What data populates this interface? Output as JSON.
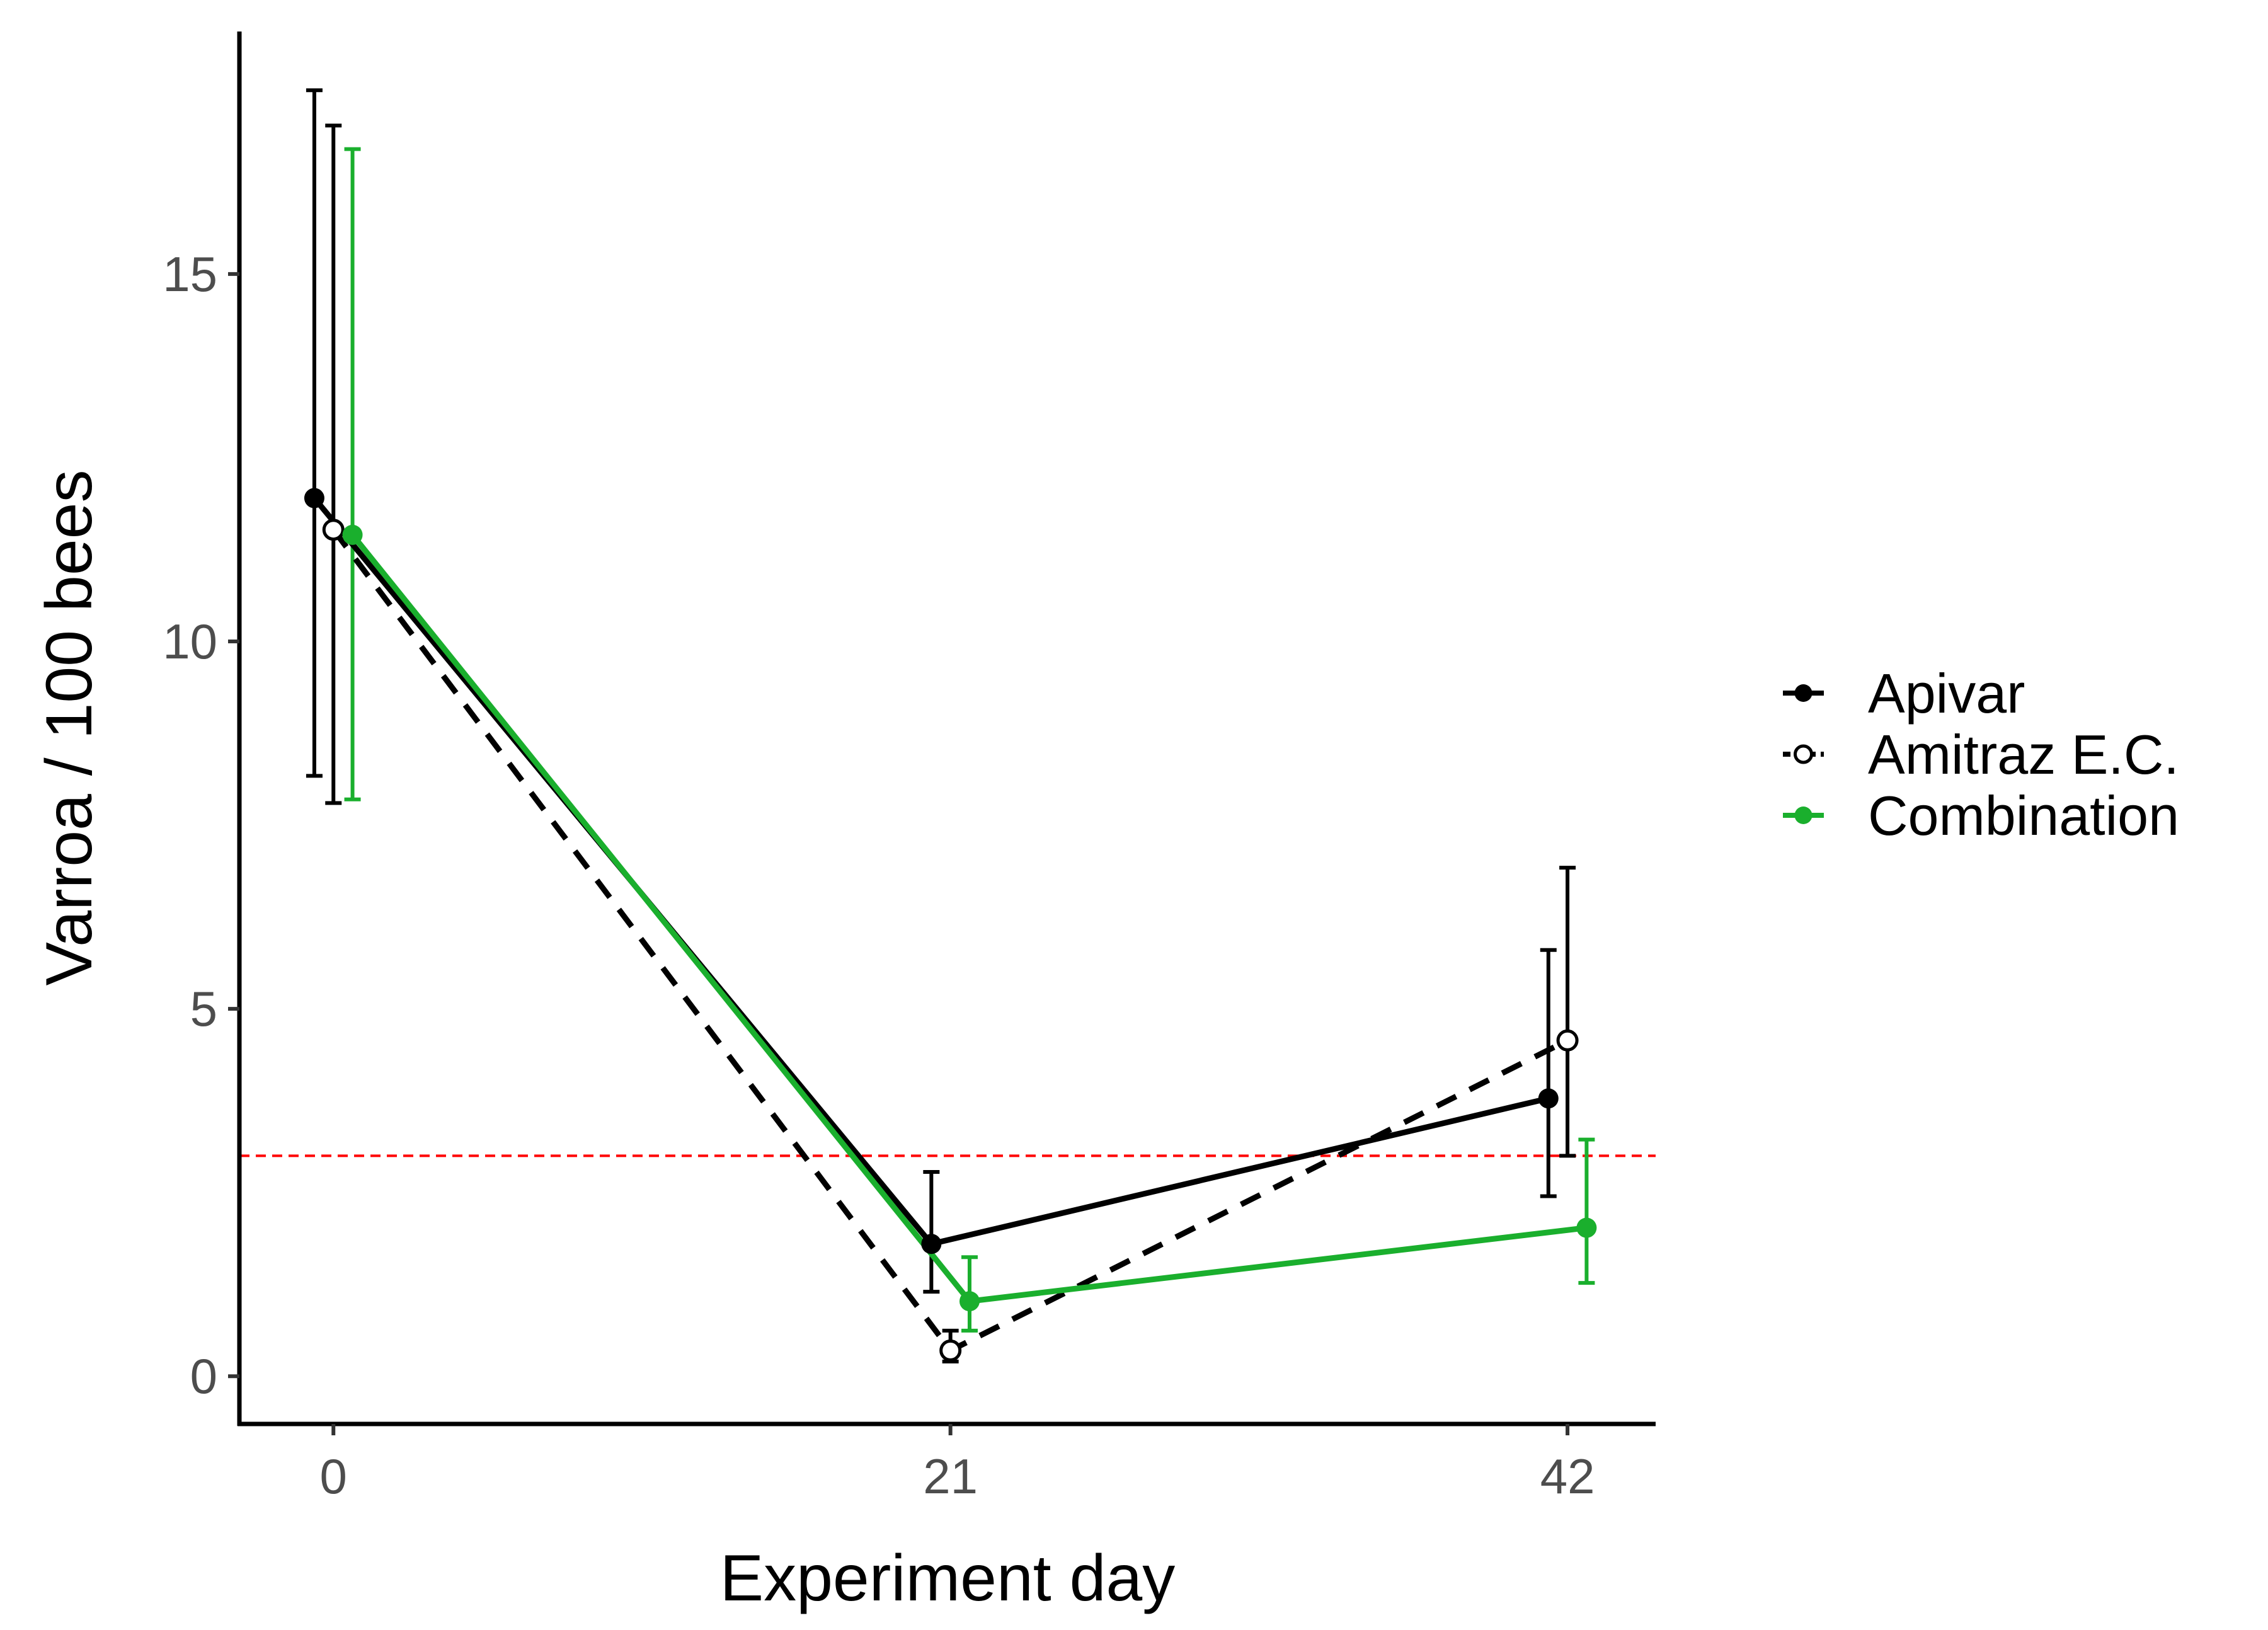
{
  "chart_data": {
    "type": "line",
    "xlabel": "Experiment day",
    "ylabel": "Varroa / 100 bees",
    "x_ticks": [
      0,
      21,
      42
    ],
    "y_ticks": [
      0,
      5,
      10,
      15
    ],
    "xlim": [
      -3.2,
      45
    ],
    "ylim": [
      -0.65,
      18.3
    ],
    "legend_position": "right",
    "grid": false,
    "threshold_line": {
      "y": 3,
      "color": "#ff0000",
      "style": "dashed"
    },
    "series": [
      {
        "name": "Apivar",
        "color": "#000000",
        "marker": "filled",
        "line_style": "solid",
        "dodge": -0.65,
        "x": [
          0,
          21,
          42
        ],
        "y": [
          11.95,
          1.8,
          3.78
        ],
        "err_low": [
          8.17,
          1.15,
          2.45
        ],
        "err_high": [
          17.5,
          2.78,
          5.8
        ]
      },
      {
        "name": "Amitraz E.C.",
        "color": "#000000",
        "marker": "open",
        "line_style": "dashed",
        "dodge": 0,
        "x": [
          0,
          21,
          42
        ],
        "y": [
          11.52,
          0.35,
          4.57
        ],
        "err_low": [
          7.8,
          0.2,
          3.0
        ],
        "err_high": [
          17.02,
          0.62,
          6.92
        ]
      },
      {
        "name": "Combination",
        "color": "#1aaf2d",
        "marker": "filled",
        "line_style": "solid",
        "dodge": 0.65,
        "x": [
          0,
          21,
          42
        ],
        "y": [
          11.45,
          1.02,
          2.02
        ],
        "err_low": [
          7.85,
          0.62,
          1.27
        ],
        "err_high": [
          16.7,
          1.62,
          3.22
        ]
      }
    ]
  }
}
